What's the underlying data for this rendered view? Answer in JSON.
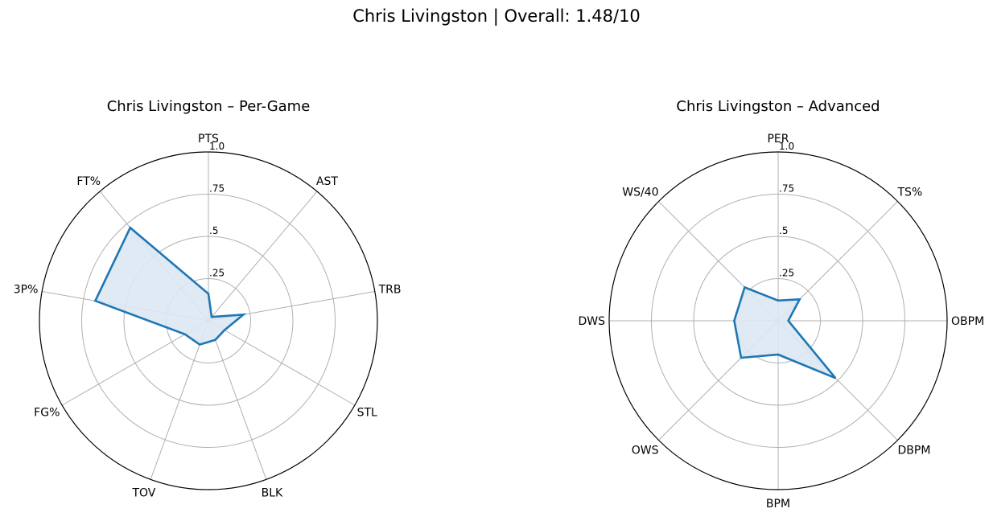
{
  "suptitle": "Chris Livingston | Overall: 1.48/10",
  "colors": {
    "series": "#1f77b4",
    "fill": "#dce8f3",
    "grid": "#b0b0b0",
    "frame": "#000000"
  },
  "chart_data": [
    {
      "type": "radar",
      "title": "Chris Livingston – Per-Game",
      "axes": [
        "PTS",
        "AST",
        "TRB",
        "STL",
        "BLK",
        "TOV",
        "FG%",
        "3P%",
        "FT%"
      ],
      "values": [
        0.16,
        0.03,
        0.21,
        0.11,
        0.12,
        0.15,
        0.16,
        0.68,
        0.72
      ],
      "rlim": [
        0,
        1
      ],
      "rticks": [
        0.25,
        0.5,
        0.75,
        1.0
      ],
      "rtick_labels": [
        ".25",
        ".5",
        ".75",
        "1.0"
      ],
      "grid": true
    },
    {
      "type": "radar",
      "title": "Chris Livingston – Advanced",
      "axes": [
        "PER",
        "TS%",
        "OBPM",
        "DBPM",
        "BPM",
        "OWS",
        "DWS",
        "WS/40"
      ],
      "values": [
        0.12,
        0.18,
        0.06,
        0.48,
        0.2,
        0.31,
        0.26,
        0.28
      ],
      "rlim": [
        0,
        1
      ],
      "rticks": [
        0.25,
        0.5,
        0.75,
        1.0
      ],
      "rtick_labels": [
        ".25",
        ".5",
        ".75",
        "1.0"
      ],
      "grid": true
    }
  ]
}
